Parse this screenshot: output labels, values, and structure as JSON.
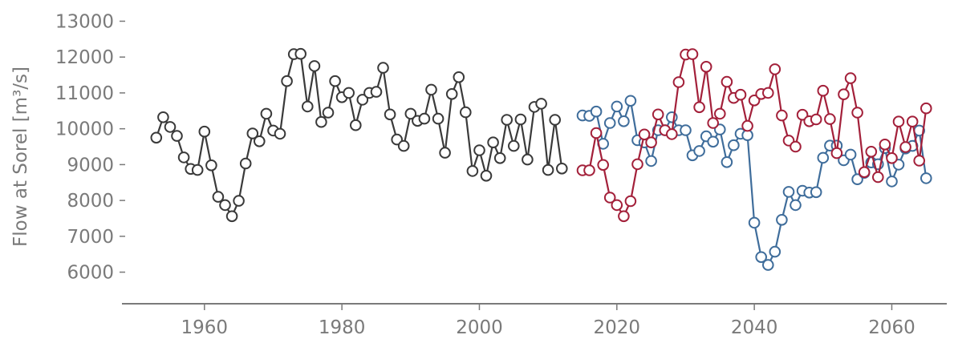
{
  "chart_data": {
    "type": "line",
    "title": "",
    "xlabel": "",
    "ylabel": "Flow at Sorel [m³/s]",
    "xlim": [
      1948,
      2068
    ],
    "ylim": [
      5700,
      13100
    ],
    "xticks": [
      1960,
      1980,
      2000,
      2020,
      2040,
      2060
    ],
    "yticks": [
      6000,
      7000,
      8000,
      9000,
      10000,
      11000,
      12000,
      13000
    ],
    "grid": false,
    "legend": "none",
    "series": [
      {
        "color": "#3a3a3a",
        "x": [
          1953,
          1954,
          1955,
          1956,
          1957,
          1958,
          1959,
          1960,
          1961,
          1962,
          1963,
          1964,
          1965,
          1966,
          1967,
          1968,
          1969,
          1970,
          1971,
          1972,
          1973,
          1974,
          1975,
          1976,
          1977,
          1978,
          1979,
          1980,
          1981,
          1982,
          1983,
          1984,
          1985,
          1986,
          1987,
          1988,
          1989,
          1990,
          1991,
          1992,
          1993,
          1994,
          1995,
          1996,
          1997,
          1998,
          1999,
          2000,
          2001,
          2002,
          2003,
          2004,
          2005,
          2006,
          2007,
          2008,
          2009,
          2010,
          2011,
          2012
        ],
        "y": [
          9750,
          10320,
          10050,
          9800,
          9200,
          8880,
          8850,
          9920,
          8980,
          8100,
          7870,
          7560,
          7990,
          9030,
          9870,
          9650,
          10420,
          9950,
          9860,
          11330,
          12080,
          12090,
          10620,
          11750,
          10190,
          10450,
          11330,
          10880,
          11000,
          10100,
          10810,
          11000,
          11030,
          11700,
          10400,
          9700,
          9520,
          10420,
          10220,
          10280,
          11090,
          10280,
          9330,
          10970,
          11440,
          10460,
          8820,
          9400,
          8690,
          9620,
          9180,
          10250,
          9520,
          10260,
          9140,
          10610,
          10700,
          8850,
          10250,
          8890
        ]
      },
      {
        "color": "#3f6d9b",
        "x": [
          2015,
          2016,
          2017,
          2018,
          2019,
          2020,
          2021,
          2022,
          2023,
          2024,
          2025,
          2026,
          2027,
          2028,
          2029,
          2030,
          2031,
          2032,
          2033,
          2034,
          2035,
          2036,
          2037,
          2038,
          2039,
          2040,
          2041,
          2042,
          2043,
          2044,
          2045,
          2046,
          2047,
          2048,
          2049,
          2050,
          2051,
          2052,
          2053,
          2054,
          2055,
          2056,
          2057,
          2058,
          2059,
          2060,
          2061,
          2062,
          2063,
          2064,
          2065
        ],
        "y": [
          10370,
          10360,
          10480,
          9580,
          10160,
          10620,
          10210,
          10780,
          9680,
          9620,
          9100,
          9960,
          9960,
          10320,
          9960,
          9960,
          9260,
          9380,
          9790,
          9640,
          9980,
          9070,
          9540,
          9860,
          9820,
          7380,
          6420,
          6200,
          6570,
          7460,
          8240,
          7870,
          8270,
          8220,
          8230,
          9190,
          9530,
          9530,
          9120,
          9280,
          8590,
          8770,
          9060,
          9010,
          9460,
          8530,
          9000,
          9450,
          9520,
          9950,
          8620
        ]
      },
      {
        "color": "#a3203a",
        "x": [
          2015,
          2016,
          2017,
          2018,
          2019,
          2020,
          2021,
          2022,
          2023,
          2024,
          2025,
          2026,
          2027,
          2028,
          2029,
          2030,
          2031,
          2032,
          2033,
          2034,
          2035,
          2036,
          2037,
          2038,
          2039,
          2040,
          2041,
          2042,
          2043,
          2044,
          2045,
          2046,
          2047,
          2048,
          2049,
          2050,
          2051,
          2052,
          2053,
          2054,
          2055,
          2056,
          2057,
          2058,
          2059,
          2060,
          2061,
          2062,
          2063,
          2064,
          2065
        ],
        "y": [
          8840,
          8840,
          9880,
          8990,
          8080,
          7870,
          7560,
          7980,
          9010,
          9840,
          9620,
          10400,
          9960,
          9850,
          11300,
          12070,
          12080,
          10600,
          11730,
          10160,
          10420,
          11310,
          10860,
          10950,
          10080,
          10790,
          10970,
          11000,
          11660,
          10370,
          9670,
          9500,
          10390,
          10210,
          10260,
          11060,
          10270,
          9320,
          10960,
          11410,
          10450,
          8790,
          9360,
          8650,
          9560,
          9180,
          10200,
          9490,
          10200,
          9110,
          10570
        ]
      }
    ]
  }
}
